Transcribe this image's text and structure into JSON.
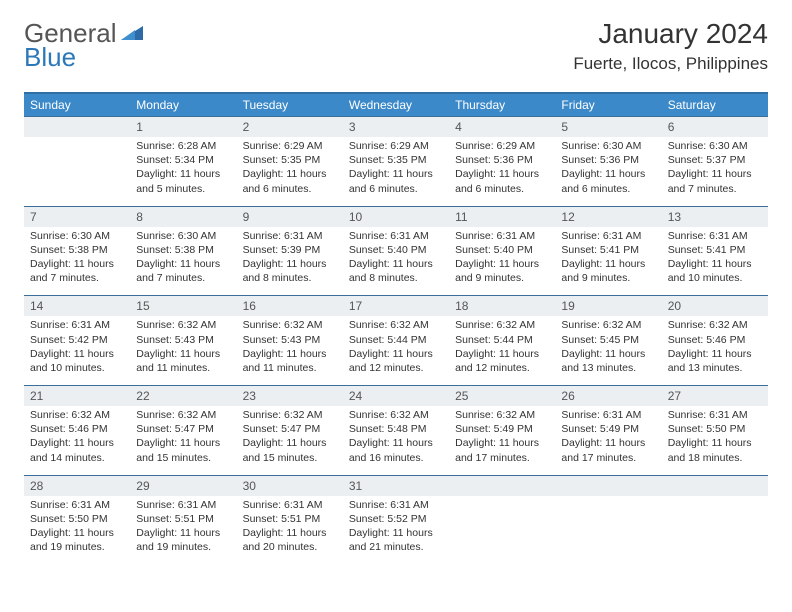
{
  "logo": {
    "general": "General",
    "blue": "Blue"
  },
  "title": "January 2024",
  "location": "Fuerte, Ilocos, Philippines",
  "colors": {
    "header_bg": "#3b89c9",
    "header_border": "#2f6fa3",
    "daynum_bg": "#eceff1",
    "row_divider": "#3b6e99",
    "logo_gray": "#555555",
    "logo_blue": "#2c78b9"
  },
  "weekdays": [
    "Sunday",
    "Monday",
    "Tuesday",
    "Wednesday",
    "Thursday",
    "Friday",
    "Saturday"
  ],
  "weeks": [
    {
      "nums": [
        "",
        "1",
        "2",
        "3",
        "4",
        "5",
        "6"
      ],
      "cells": [
        {},
        {
          "sr": "Sunrise: 6:28 AM",
          "ss": "Sunset: 5:34 PM",
          "d1": "Daylight: 11 hours",
          "d2": "and 5 minutes."
        },
        {
          "sr": "Sunrise: 6:29 AM",
          "ss": "Sunset: 5:35 PM",
          "d1": "Daylight: 11 hours",
          "d2": "and 6 minutes."
        },
        {
          "sr": "Sunrise: 6:29 AM",
          "ss": "Sunset: 5:35 PM",
          "d1": "Daylight: 11 hours",
          "d2": "and 6 minutes."
        },
        {
          "sr": "Sunrise: 6:29 AM",
          "ss": "Sunset: 5:36 PM",
          "d1": "Daylight: 11 hours",
          "d2": "and 6 minutes."
        },
        {
          "sr": "Sunrise: 6:30 AM",
          "ss": "Sunset: 5:36 PM",
          "d1": "Daylight: 11 hours",
          "d2": "and 6 minutes."
        },
        {
          "sr": "Sunrise: 6:30 AM",
          "ss": "Sunset: 5:37 PM",
          "d1": "Daylight: 11 hours",
          "d2": "and 7 minutes."
        }
      ]
    },
    {
      "nums": [
        "7",
        "8",
        "9",
        "10",
        "11",
        "12",
        "13"
      ],
      "cells": [
        {
          "sr": "Sunrise: 6:30 AM",
          "ss": "Sunset: 5:38 PM",
          "d1": "Daylight: 11 hours",
          "d2": "and 7 minutes."
        },
        {
          "sr": "Sunrise: 6:30 AM",
          "ss": "Sunset: 5:38 PM",
          "d1": "Daylight: 11 hours",
          "d2": "and 7 minutes."
        },
        {
          "sr": "Sunrise: 6:31 AM",
          "ss": "Sunset: 5:39 PM",
          "d1": "Daylight: 11 hours",
          "d2": "and 8 minutes."
        },
        {
          "sr": "Sunrise: 6:31 AM",
          "ss": "Sunset: 5:40 PM",
          "d1": "Daylight: 11 hours",
          "d2": "and 8 minutes."
        },
        {
          "sr": "Sunrise: 6:31 AM",
          "ss": "Sunset: 5:40 PM",
          "d1": "Daylight: 11 hours",
          "d2": "and 9 minutes."
        },
        {
          "sr": "Sunrise: 6:31 AM",
          "ss": "Sunset: 5:41 PM",
          "d1": "Daylight: 11 hours",
          "d2": "and 9 minutes."
        },
        {
          "sr": "Sunrise: 6:31 AM",
          "ss": "Sunset: 5:41 PM",
          "d1": "Daylight: 11 hours",
          "d2": "and 10 minutes."
        }
      ]
    },
    {
      "nums": [
        "14",
        "15",
        "16",
        "17",
        "18",
        "19",
        "20"
      ],
      "cells": [
        {
          "sr": "Sunrise: 6:31 AM",
          "ss": "Sunset: 5:42 PM",
          "d1": "Daylight: 11 hours",
          "d2": "and 10 minutes."
        },
        {
          "sr": "Sunrise: 6:32 AM",
          "ss": "Sunset: 5:43 PM",
          "d1": "Daylight: 11 hours",
          "d2": "and 11 minutes."
        },
        {
          "sr": "Sunrise: 6:32 AM",
          "ss": "Sunset: 5:43 PM",
          "d1": "Daylight: 11 hours",
          "d2": "and 11 minutes."
        },
        {
          "sr": "Sunrise: 6:32 AM",
          "ss": "Sunset: 5:44 PM",
          "d1": "Daylight: 11 hours",
          "d2": "and 12 minutes."
        },
        {
          "sr": "Sunrise: 6:32 AM",
          "ss": "Sunset: 5:44 PM",
          "d1": "Daylight: 11 hours",
          "d2": "and 12 minutes."
        },
        {
          "sr": "Sunrise: 6:32 AM",
          "ss": "Sunset: 5:45 PM",
          "d1": "Daylight: 11 hours",
          "d2": "and 13 minutes."
        },
        {
          "sr": "Sunrise: 6:32 AM",
          "ss": "Sunset: 5:46 PM",
          "d1": "Daylight: 11 hours",
          "d2": "and 13 minutes."
        }
      ]
    },
    {
      "nums": [
        "21",
        "22",
        "23",
        "24",
        "25",
        "26",
        "27"
      ],
      "cells": [
        {
          "sr": "Sunrise: 6:32 AM",
          "ss": "Sunset: 5:46 PM",
          "d1": "Daylight: 11 hours",
          "d2": "and 14 minutes."
        },
        {
          "sr": "Sunrise: 6:32 AM",
          "ss": "Sunset: 5:47 PM",
          "d1": "Daylight: 11 hours",
          "d2": "and 15 minutes."
        },
        {
          "sr": "Sunrise: 6:32 AM",
          "ss": "Sunset: 5:47 PM",
          "d1": "Daylight: 11 hours",
          "d2": "and 15 minutes."
        },
        {
          "sr": "Sunrise: 6:32 AM",
          "ss": "Sunset: 5:48 PM",
          "d1": "Daylight: 11 hours",
          "d2": "and 16 minutes."
        },
        {
          "sr": "Sunrise: 6:32 AM",
          "ss": "Sunset: 5:49 PM",
          "d1": "Daylight: 11 hours",
          "d2": "and 17 minutes."
        },
        {
          "sr": "Sunrise: 6:31 AM",
          "ss": "Sunset: 5:49 PM",
          "d1": "Daylight: 11 hours",
          "d2": "and 17 minutes."
        },
        {
          "sr": "Sunrise: 6:31 AM",
          "ss": "Sunset: 5:50 PM",
          "d1": "Daylight: 11 hours",
          "d2": "and 18 minutes."
        }
      ]
    },
    {
      "nums": [
        "28",
        "29",
        "30",
        "31",
        "",
        "",
        ""
      ],
      "cells": [
        {
          "sr": "Sunrise: 6:31 AM",
          "ss": "Sunset: 5:50 PM",
          "d1": "Daylight: 11 hours",
          "d2": "and 19 minutes."
        },
        {
          "sr": "Sunrise: 6:31 AM",
          "ss": "Sunset: 5:51 PM",
          "d1": "Daylight: 11 hours",
          "d2": "and 19 minutes."
        },
        {
          "sr": "Sunrise: 6:31 AM",
          "ss": "Sunset: 5:51 PM",
          "d1": "Daylight: 11 hours",
          "d2": "and 20 minutes."
        },
        {
          "sr": "Sunrise: 6:31 AM",
          "ss": "Sunset: 5:52 PM",
          "d1": "Daylight: 11 hours",
          "d2": "and 21 minutes."
        },
        {},
        {},
        {}
      ]
    }
  ]
}
